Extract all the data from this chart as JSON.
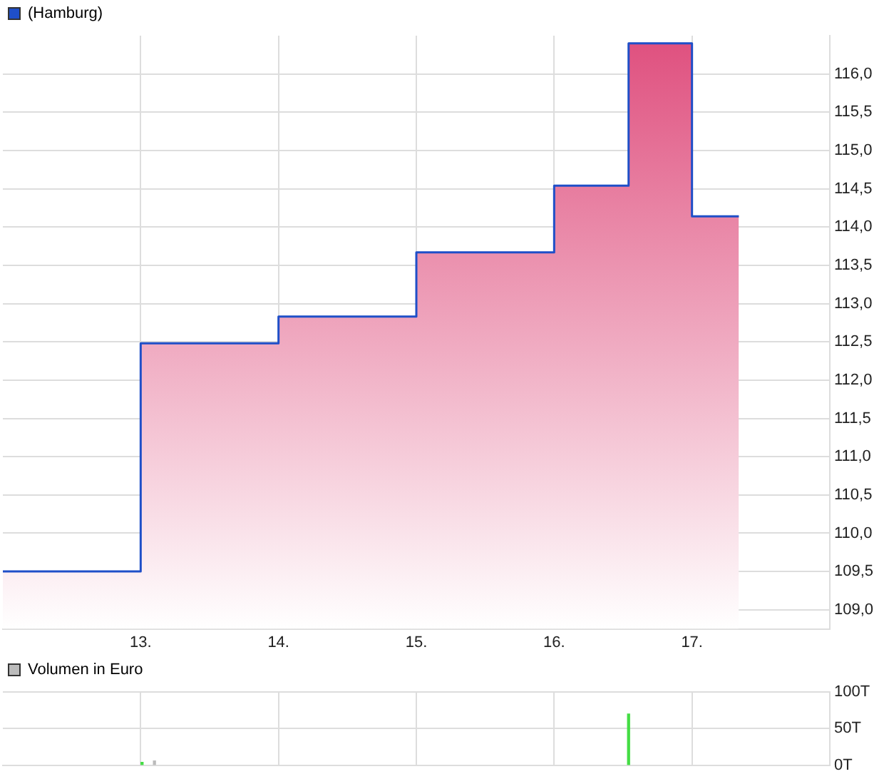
{
  "chart_data": [
    {
      "type": "area",
      "legend": "top left",
      "grid": true,
      "marker": "none",
      "xlim": [
        12,
        18
      ],
      "xticks": [
        {
          "value": 13,
          "label": "13."
        },
        {
          "value": 14,
          "label": "14."
        },
        {
          "value": 15,
          "label": "15."
        },
        {
          "value": 16,
          "label": "16."
        },
        {
          "value": 17,
          "label": "17."
        }
      ],
      "ylim": [
        108.75,
        116.5
      ],
      "yticks": [
        {
          "value": 109,
          "label": "109,0"
        },
        {
          "value": 109.5,
          "label": "109,5"
        },
        {
          "value": 110,
          "label": "110,0"
        },
        {
          "value": 110.5,
          "label": "110,5"
        },
        {
          "value": 111,
          "label": "111,0"
        },
        {
          "value": 111.5,
          "label": "111,5"
        },
        {
          "value": 112,
          "label": "112,0"
        },
        {
          "value": 112.5,
          "label": "112,5"
        },
        {
          "value": 113,
          "label": "113,0"
        },
        {
          "value": 113.5,
          "label": "113,5"
        },
        {
          "value": 114,
          "label": "114,0"
        },
        {
          "value": 114.5,
          "label": "114,5"
        },
        {
          "value": 115,
          "label": "115,0"
        },
        {
          "value": 115.5,
          "label": "115,5"
        },
        {
          "value": 116,
          "label": "116,0"
        }
      ],
      "series": [
        {
          "name": "(Hamburg)",
          "color": "#1f4fc8",
          "x": [
            12,
            13,
            13,
            14,
            14,
            15,
            15,
            16,
            16,
            16.54,
            16.54,
            17,
            17,
            17.34
          ],
          "values": [
            109.5,
            109.5,
            112.48,
            112.48,
            112.83,
            112.83,
            113.67,
            113.67,
            114.54,
            114.54,
            116.4,
            116.4,
            114.14,
            114.14
          ]
        }
      ]
    },
    {
      "type": "bar",
      "legend": "top left",
      "grid": true,
      "tick_labels": "y",
      "xlim": [
        12,
        18
      ],
      "xticks": [
        {
          "value": 13,
          "label": null
        },
        {
          "value": 14,
          "label": null
        },
        {
          "value": 15,
          "label": null
        },
        {
          "value": 16,
          "label": null
        },
        {
          "value": 17,
          "label": null
        }
      ],
      "ylim": [
        0,
        100
      ],
      "yticks": [
        {
          "value": 0,
          "label": "0T"
        },
        {
          "value": 50,
          "label": "50T"
        },
        {
          "value": 100,
          "label": "100T"
        }
      ],
      "series": [
        {
          "name": "Volumen in Euro",
          "color": "#bbbbbb",
          "x": [
            13.01,
            13.1,
            16.54
          ],
          "values": [
            4,
            6,
            70
          ],
          "colors": [
            "#44dd44",
            "#bbbbbb",
            "#44dd44"
          ]
        }
      ]
    }
  ]
}
